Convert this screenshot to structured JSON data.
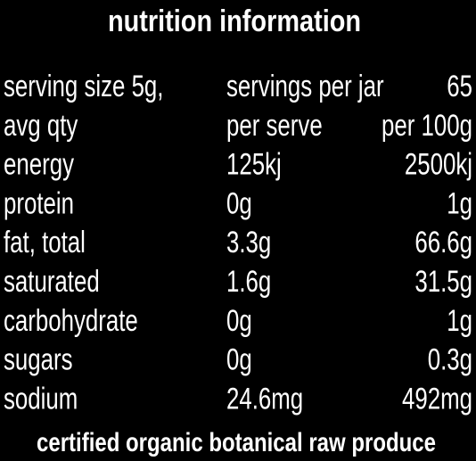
{
  "header": {
    "title": "nutrition information"
  },
  "table": {
    "rows": [
      [
        "serving size 5g,",
        "servings per jar",
        "65"
      ],
      [
        "avg qty",
        "per serve",
        "per 100g"
      ],
      [
        "energy",
        "125kj",
        "2500kj"
      ],
      [
        "protein",
        "0g",
        "1g"
      ],
      [
        "fat, total",
        "3.3g",
        "66.6g"
      ],
      [
        "saturated",
        "1.6g",
        "31.5g"
      ],
      [
        "carbohydrate",
        "0g",
        "1g"
      ],
      [
        "sugars",
        "0g",
        "0.3g"
      ],
      [
        "sodium",
        "24.6mg",
        "492mg"
      ]
    ]
  },
  "footer": {
    "text": "certified organic botanical raw produce"
  }
}
